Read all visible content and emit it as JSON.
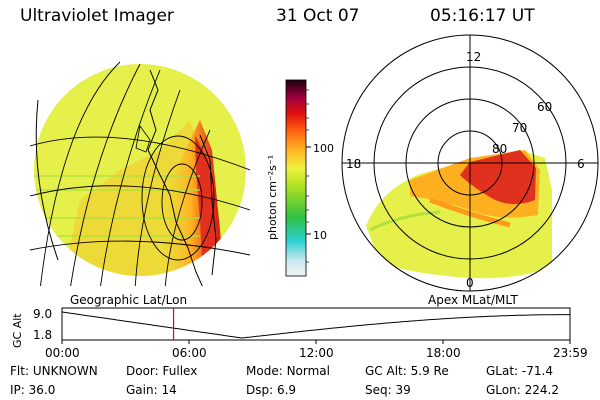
{
  "header": {
    "title": "Ultraviolet Imager",
    "date": "31 Oct 07",
    "time": "05:16:17 UT"
  },
  "colorbar": {
    "unit_label": "photon cm⁻²s⁻¹",
    "ticks": [
      "100",
      "10"
    ]
  },
  "polar_plot": {
    "labels": {
      "top": "12",
      "left": "18",
      "right": "6",
      "bottom": "0"
    },
    "latitude_labels": [
      "60",
      "70",
      "80"
    ]
  },
  "map_labels": {
    "geographic": "Geographic Lat/Lon",
    "apex": "Apex MLat/MLT"
  },
  "altitude_plot": {
    "ylabel": "GC Alt",
    "yticks": [
      "9.0",
      "1.8"
    ],
    "xticks": [
      "00:00",
      "06:00",
      "12:00",
      "18:00",
      "23:59"
    ],
    "marker_time_hours": 5.27
  },
  "footer": {
    "row1": [
      {
        "label": "Flt:",
        "value": "UNKNOWN"
      },
      {
        "label": "Door:",
        "value": "Fullex"
      },
      {
        "label": "Mode:",
        "value": "Normal"
      },
      {
        "label": "GC Alt:",
        "value": "5.9 Re"
      },
      {
        "label": "GLat:",
        "value": "-71.4"
      }
    ],
    "row2": [
      {
        "label": "IP:",
        "value": "36.0"
      },
      {
        "label": "Gain:",
        "value": "14"
      },
      {
        "label": "Dsp:",
        "value": "6.9"
      },
      {
        "label": "Seq:",
        "value": "39"
      },
      {
        "label": "GLon:",
        "value": "224.2"
      }
    ]
  },
  "colors": {
    "background_yellow": "#e6f04a",
    "aurora_red": "#e0301e",
    "aurora_orange": "#ff9a1a",
    "marker_red": "#d01010"
  }
}
